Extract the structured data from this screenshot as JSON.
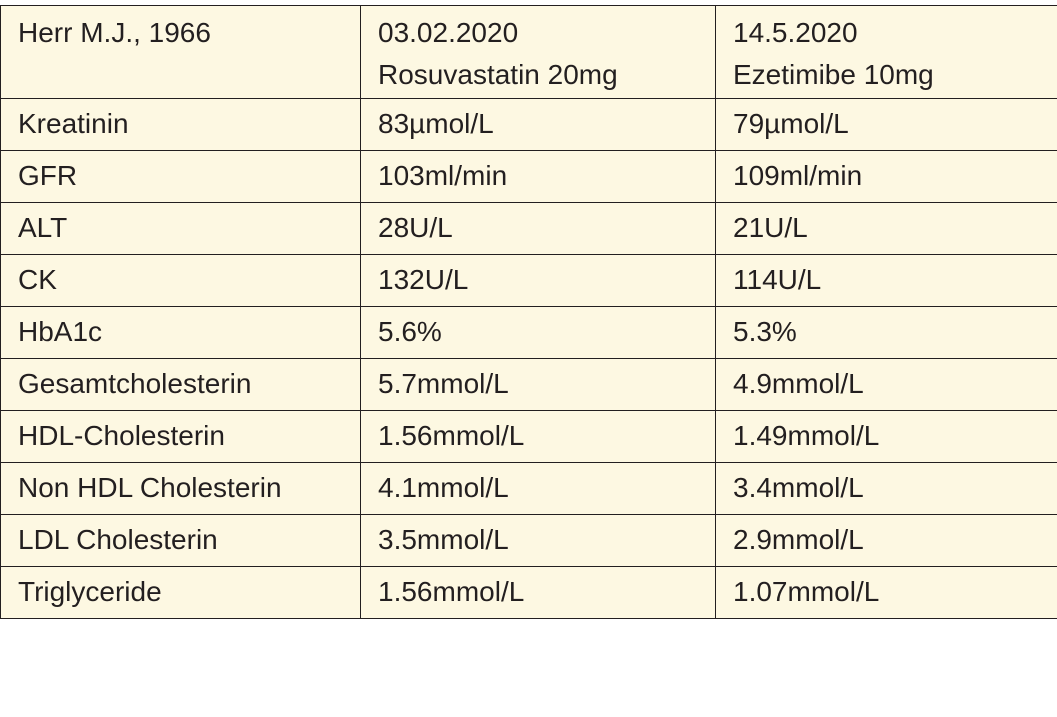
{
  "table": {
    "header": {
      "patient": "Herr M.J., 1966",
      "columns": [
        {
          "date": "03.02.2020",
          "therapy": "Rosuvastatin 20mg"
        },
        {
          "date": "14.5.2020",
          "therapy": "Ezetimibe 10mg"
        }
      ]
    },
    "rows": [
      [
        "Kreatinin",
        "83µmol/L",
        "79µmol/L"
      ],
      [
        "GFR",
        "103ml/min",
        "109ml/min"
      ],
      [
        "ALT",
        "28U/L",
        "21U/L"
      ],
      [
        "CK",
        "132U/L",
        "114U/L"
      ],
      [
        "HbA1c",
        "5.6%",
        "5.3%"
      ],
      [
        "Gesamtcholesterin",
        "5.7mmol/L",
        "4.9mmol/L"
      ],
      [
        "HDL-Cholesterin",
        "1.56mmol/L",
        "1.49mmol/L"
      ],
      [
        "Non HDL Cholesterin",
        "4.1mmol/L",
        "3.4mmol/L"
      ],
      [
        "LDL Cholesterin",
        "3.5mmol/L",
        "2.9mmol/L"
      ],
      [
        "Triglyceride",
        "1.56mmol/L",
        "1.07mmol/L"
      ]
    ]
  }
}
